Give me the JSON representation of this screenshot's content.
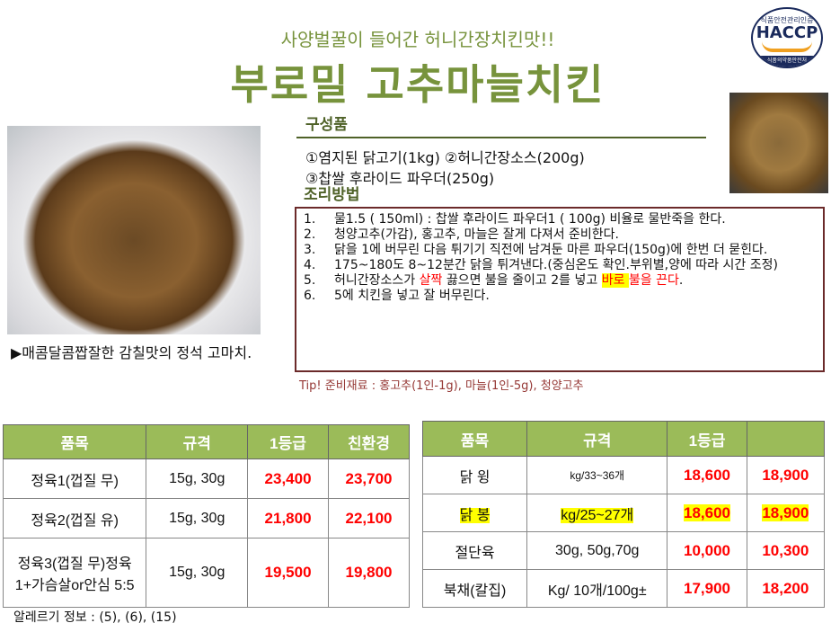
{
  "header": {
    "subtitle": "사양벌꿀이 들어간 허니간장치킨맛!!",
    "title": "부로밀 고추마늘치킨",
    "logo_text": [
      "식품안전관리인증",
      "HACCP",
      "식품의약품안전처"
    ]
  },
  "colors": {
    "accent": "#77933c",
    "table_header": "#9bbb59",
    "price": "#ff0000",
    "box_border": "#6b2a2a"
  },
  "caption": "▶매콤달콤짭잘한 감칠맛의 정석 고마치.",
  "composition": {
    "label": "구성품",
    "line1": "①염지된 닭고기(1kg) ②허니간장소스(200g)",
    "line2": "③찹쌀 후라이드 파우더(250g)"
  },
  "method": {
    "label": "조리방법",
    "steps": [
      {
        "n": "1.",
        "text": "물1.5 ( 150ml)  :  찹쌀 후라이드 파우더1 ( 100g) 비율로 물반죽을 한다."
      },
      {
        "n": "2.",
        "text": "청양고추(가감), 홍고추, 마늘은 잘게 다져서 준비한다."
      },
      {
        "n": "3.",
        "text": "닭을 1에 버무린 다음 튀기기 직전에 남겨둔 마른 파우더(150g)에 한번 더 묻힌다."
      },
      {
        "n": "4.",
        "text": "175~180도 8~12분간 닭을 튀겨낸다.(중심온도 확인.부위별,양에 따라 시간 조정)"
      },
      {
        "n": "5.",
        "a": "허니간장소스가 ",
        "b": "살짝",
        "c": " 끓으면 불을 줄이고 2를 넣고 ",
        "d": "바로 ",
        "e": "불을 끈다",
        "f": "."
      },
      {
        "n": "6.",
        "text": "5에 치킨을 넣고  잘 버무린다."
      }
    ]
  },
  "tip": "Tip!  준비재료 : 홍고추(1인-1g), 마늘(1인-5g), 청양고추",
  "table_left": {
    "headers": [
      "품목",
      "규격",
      "1등급",
      "친환경"
    ],
    "rows": [
      [
        "정육1(껍질 무)",
        "15g, 30g",
        "23,400",
        "23,700"
      ],
      [
        "정육2(껍질 유)",
        "15g, 30g",
        "21,800",
        "22,100"
      ],
      [
        "정육3(껍질 무)정육1+가슴살or안심 5:5",
        "15g, 30g",
        "19,500",
        "19,800"
      ]
    ]
  },
  "table_right": {
    "headers": [
      "품목",
      "규격",
      "1등급",
      ""
    ],
    "rows": [
      [
        "닭 윙",
        "kg/33~36개",
        "18,600",
        "18,900"
      ],
      [
        "닭 봉",
        "kg/25~27개",
        "18,600",
        "18,900"
      ],
      [
        "절단육",
        "30g, 50g,70g",
        "10,000",
        "10,300"
      ],
      [
        "북채(칼집)",
        "Kg/ 10개/100g±",
        "17,900",
        "18,200"
      ]
    ]
  },
  "allergy": "알레르기 정보 : (5), (6), (15)"
}
